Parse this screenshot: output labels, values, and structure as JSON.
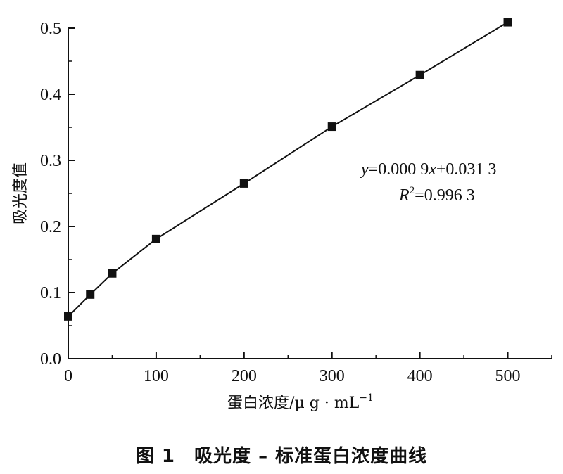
{
  "chart_data": {
    "type": "line",
    "x": [
      0,
      25,
      50,
      100,
      200,
      300,
      400,
      500
    ],
    "y": [
      0.064,
      0.097,
      0.129,
      0.181,
      0.265,
      0.351,
      0.429,
      0.509
    ],
    "xlim": [
      0,
      550
    ],
    "ylim": [
      0,
      0.5
    ],
    "xticks": [
      "0",
      "100",
      "200",
      "300",
      "400",
      "500"
    ],
    "yticks": [
      "0.0",
      "0.1",
      "0.2",
      "0.3",
      "0.4",
      "0.5"
    ],
    "xlabel": "蛋白浓度/μ g · mL",
    "xlabel_exp": "−1",
    "ylabel": "吸光度值",
    "equation": {
      "y_var": "y",
      "y_rhs_1": "=0.000 9",
      "x_var": "x",
      "y_rhs_2": "+0.031 3",
      "r_var": "R",
      "r_sup": "2",
      "r_rhs": "=0.996 3"
    },
    "marker": "square",
    "grid": false,
    "line_color": "#111111"
  },
  "caption": "图 1　吸光度 – 标准蛋白浓度曲线"
}
